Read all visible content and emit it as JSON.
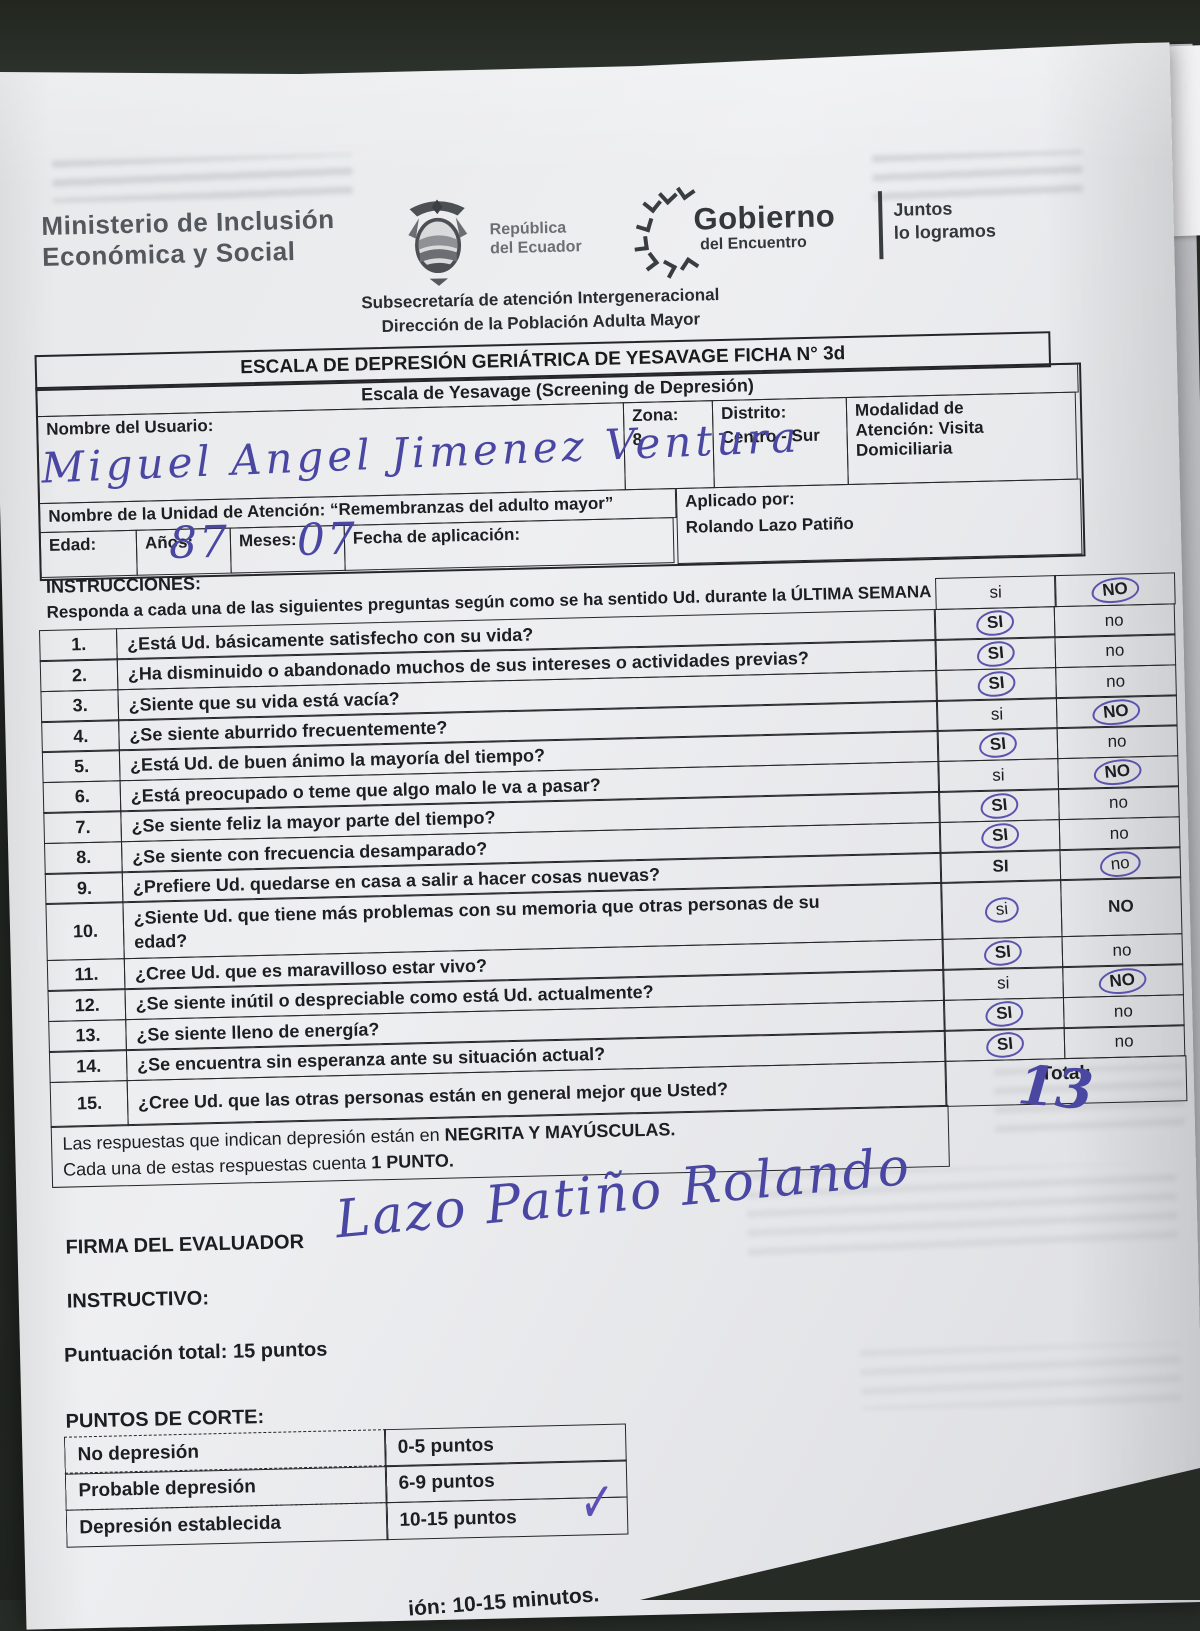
{
  "colors": {
    "handwriting_ink": "#4a47a3",
    "paper": "#ebecee",
    "background": "#272c28"
  },
  "header": {
    "ministry_line1": "Ministerio de Inclusión",
    "ministry_line2": "Económica y Social",
    "republic_line1": "República",
    "republic_line2": "del Ecuador",
    "gobierno": "Gobierno",
    "gobierno_sub": "del Encuentro",
    "slogan_line1": "Juntos",
    "slogan_line2": "lo logramos",
    "subsecretaria": "Subsecretaría de atención Intergeneracional",
    "direccion": "Dirección de la Población Adulta Mayor"
  },
  "form": {
    "title": "ESCALA DE DEPRESIÓN GERIÁTRICA DE YESAVAGE FICHA N° 3d",
    "subtitle": "Escala de Yesavage  (Screening de Depresión)",
    "nombre_label": "Nombre del Usuario:",
    "nombre_value": "Miguel Angel Jimenez Ventura",
    "zona_label": "Zona:",
    "zona_value": "8",
    "distrito_label": "Distrito:",
    "distrito_value": "Centro - Sur",
    "modalidad_line1": "Modalidad de",
    "modalidad_line2": "Atención: Visita",
    "modalidad_line3": "Domiciliaria",
    "unidad_label": "Nombre de la Unidad de Atención: “Remembranzas del adulto mayor”",
    "edad_label": "Edad:",
    "anos_label": "Años:",
    "anos_value": "87",
    "meses_label": "Meses:",
    "meses_value": "07",
    "fecha_label": "Fecha de aplicación:",
    "aplicado_label": "Aplicado por:",
    "aplicado_value": "Rolando Lazo Patiño"
  },
  "instructions": {
    "label": "INSTRUCCIONES:",
    "text": "Responda a cada una de las siguientes preguntas según como se ha sentido Ud. durante la ÚLTIMA SEMANA"
  },
  "questions": {
    "header_si": "si",
    "header_no": "NO",
    "header_no_circled": true,
    "items": [
      {
        "num": "1.",
        "text": "¿Está Ud. básicamente satisfecho con su vida?",
        "si": "SI",
        "no": "no",
        "si_bold": true,
        "no_bold": false,
        "circled": "si"
      },
      {
        "num": "2.",
        "text": "¿Ha disminuido o abandonado muchos de sus intereses o actividades previas?",
        "si": "SI",
        "no": "no",
        "si_bold": true,
        "no_bold": false,
        "circled": "si"
      },
      {
        "num": "3.",
        "text": "¿Siente que su vida está vacía?",
        "si": "SI",
        "no": "no",
        "si_bold": true,
        "no_bold": false,
        "circled": "si"
      },
      {
        "num": "4.",
        "text": "¿Se siente aburrido frecuentemente?",
        "si": "si",
        "no": "NO",
        "si_bold": false,
        "no_bold": true,
        "circled": "no"
      },
      {
        "num": "5.",
        "text": "¿Está Ud. de buen ánimo la mayoría del tiempo?",
        "si": "SI",
        "no": "no",
        "si_bold": true,
        "no_bold": false,
        "circled": "si"
      },
      {
        "num": "6.",
        "text": "¿Está preocupado o teme que algo malo le va a pasar?",
        "si": "si",
        "no": "NO",
        "si_bold": false,
        "no_bold": true,
        "circled": "no"
      },
      {
        "num": "7.",
        "text": "¿Se siente feliz la mayor parte del tiempo?",
        "si": "SI",
        "no": "no",
        "si_bold": true,
        "no_bold": false,
        "circled": "si"
      },
      {
        "num": "8.",
        "text": "¿Se siente con frecuencia desamparado?",
        "si": "SI",
        "no": "no",
        "si_bold": true,
        "no_bold": false,
        "circled": "si"
      },
      {
        "num": "9.",
        "text": "¿Prefiere Ud. quedarse en casa a salir a hacer cosas nuevas?",
        "si": "SI",
        "no": "no",
        "si_bold": true,
        "no_bold": false,
        "circled": "no"
      },
      {
        "num": "10.",
        "text": "¿Siente Ud. que tiene más problemas con su memoria que otras personas de su\nedad?",
        "si": "si",
        "no": "NO",
        "si_bold": false,
        "no_bold": true,
        "circled": "si",
        "tall": true
      },
      {
        "num": "11.",
        "text": "¿Cree Ud. que es maravilloso estar vivo?",
        "si": "SI",
        "no": "no",
        "si_bold": true,
        "no_bold": false,
        "circled": "si"
      },
      {
        "num": "12.",
        "text": "¿Se siente inútil o despreciable como está Ud. actualmente?",
        "si": "si",
        "no": "NO",
        "si_bold": false,
        "no_bold": true,
        "circled": "no"
      },
      {
        "num": "13.",
        "text": "¿Se siente lleno de energía?",
        "si": "SI",
        "no": "no",
        "si_bold": true,
        "no_bold": false,
        "circled": "si"
      },
      {
        "num": "14.",
        "text": "¿Se encuentra sin esperanza ante su situación actual?",
        "si": "SI",
        "no": "no",
        "si_bold": true,
        "no_bold": false,
        "circled": "si"
      },
      {
        "num": "15.",
        "text": "¿Cree Ud. que las otras personas están en general mejor que Usted?",
        "total_row": true
      }
    ],
    "total_label": "Total:",
    "total_value": "13",
    "note1_prefix": "Las respuestas que indican depresión están en ",
    "note1_bold": "NEGRITA Y MAYÚSCULAS.",
    "note2_prefix": "Cada una de estas respuestas cuenta ",
    "note2_bold": "1 PUNTO."
  },
  "footer": {
    "firma_label": "FIRMA DEL EVALUADOR",
    "firma_value": "Lazo Patiño Rolando",
    "instructivo_label": "INSTRUCTIVO:",
    "puntuacion": "Puntuación total: 15 puntos",
    "corte_label": "PUNTOS DE CORTE:",
    "corte_rows": [
      {
        "label": "No depresión",
        "range": "0-5 puntos",
        "checked": false
      },
      {
        "label": "Probable depresión",
        "range": "6-9 puntos",
        "checked": false
      },
      {
        "label": "Depresión establecida",
        "range": "10-15 puntos",
        "checked": true
      }
    ],
    "checkmark": "✓",
    "bottom_fragment": "ión: 10-15 minutos.",
    "pen_marks": [
      "’",
      "‘"
    ]
  },
  "icons": {
    "coat_of_arms": "ecuador-coat-of-arms",
    "arrows": "gobierno-arrows-swirl"
  }
}
